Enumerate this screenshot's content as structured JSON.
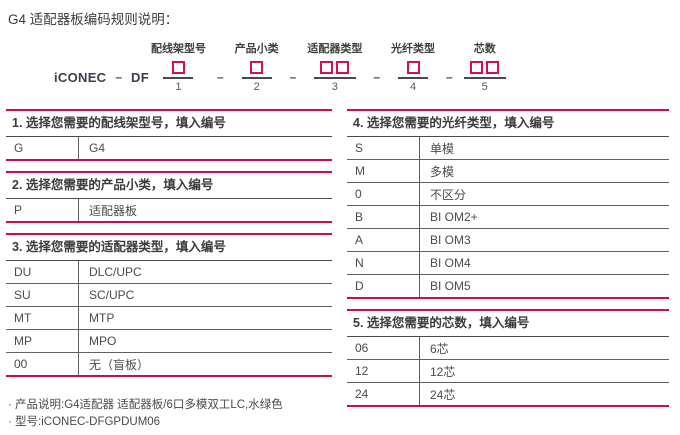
{
  "page_title": "G4 适配器板编码规则说明：",
  "colors": {
    "accent": "#CE0758",
    "dark_line": "#4A4A4A",
    "text": "#454545"
  },
  "formula": {
    "brand": "iCONEC",
    "separator": "–",
    "prefix": "DF",
    "positions": [
      {
        "label": "配线架型号",
        "boxes": 1,
        "number": "1"
      },
      {
        "label": "产品小类",
        "boxes": 1,
        "number": "2"
      },
      {
        "label": "适配器类型",
        "boxes": 2,
        "number": "3"
      },
      {
        "label": "光纤类型",
        "boxes": 1,
        "number": "4"
      },
      {
        "label": "芯数",
        "boxes": 2,
        "number": "5"
      }
    ]
  },
  "tables": [
    {
      "title": "1. 选择您需要的配线架型号，填入编号",
      "rows": [
        {
          "code": "G",
          "desc": "G4"
        }
      ]
    },
    {
      "title": "2. 选择您需要的产品小类，填入编号",
      "rows": [
        {
          "code": "P",
          "desc": "适配器板"
        }
      ]
    },
    {
      "title": "3. 选择您需要的适配器类型，填入编号",
      "rows": [
        {
          "code": "DU",
          "desc": "DLC/UPC"
        },
        {
          "code": "SU",
          "desc": "SC/UPC"
        },
        {
          "code": "MT",
          "desc": "MTP"
        },
        {
          "code": "MP",
          "desc": "MPO"
        },
        {
          "code": "00",
          "desc": "无（盲板）"
        }
      ]
    },
    {
      "title": "4. 选择您需要的光纤类型，填入编号",
      "rows": [
        {
          "code": "S",
          "desc": "单模"
        },
        {
          "code": "M",
          "desc": "多模"
        },
        {
          "code": "0",
          "desc": "不区分"
        },
        {
          "code": "B",
          "desc": "BI OM2+"
        },
        {
          "code": "A",
          "desc": "BI OM3"
        },
        {
          "code": "N",
          "desc": "BI OM4"
        },
        {
          "code": "D",
          "desc": "BI OM5"
        }
      ]
    },
    {
      "title": "5. 选择您需要的芯数，填入编号",
      "rows": [
        {
          "code": "06",
          "desc": "6芯"
        },
        {
          "code": "12",
          "desc": "12芯"
        },
        {
          "code": "24",
          "desc": "24芯"
        }
      ]
    }
  ],
  "notes": [
    "· 产品说明:G4适配器 适配器板/6口多模双工LC,水绿色",
    "· 型号:iCONEC-DFGPDUM06"
  ]
}
